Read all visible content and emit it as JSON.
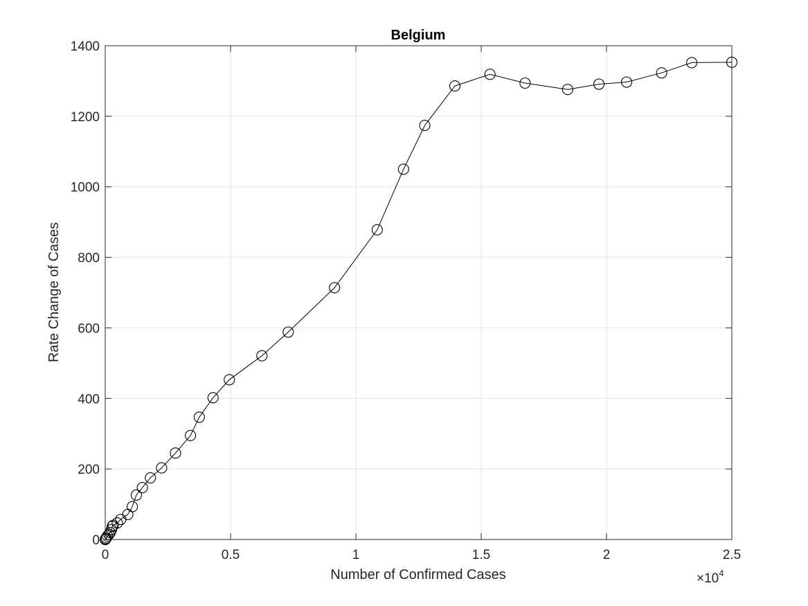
{
  "chart_data": {
    "type": "line",
    "title": "Belgium",
    "xlabel": "Number of Confirmed Cases",
    "ylabel": "Rate Change of Cases",
    "xlim": [
      0,
      25000
    ],
    "ylim": [
      0,
      1400
    ],
    "x_ticks": [
      0,
      5000,
      10000,
      15000,
      20000,
      25000
    ],
    "x_tick_labels": [
      "0",
      "0.5",
      "1",
      "1.5",
      "2",
      "2.5"
    ],
    "x_exponent_label": "×10",
    "x_exponent_power": "4",
    "y_ticks": [
      0,
      200,
      400,
      600,
      800,
      1000,
      1200,
      1400
    ],
    "y_tick_labels": [
      "0",
      "200",
      "400",
      "600",
      "800",
      "1000",
      "1200",
      "1400"
    ],
    "grid": true,
    "marker": "circle",
    "series": [
      {
        "name": "Belgium",
        "x": [
          0,
          20,
          50,
          90,
          150,
          200,
          250,
          280,
          320,
          480,
          620,
          900,
          1080,
          1240,
          1480,
          1800,
          2250,
          2800,
          3400,
          3750,
          4300,
          4950,
          6250,
          7300,
          9150,
          10850,
          11900,
          12750,
          13950,
          15350,
          16750,
          18450,
          19700,
          20800,
          22200,
          23400,
          25000
        ],
        "y": [
          0,
          2,
          5,
          10,
          15,
          20,
          28,
          37,
          40,
          47,
          57,
          71,
          93,
          126,
          147,
          175,
          203,
          245,
          295,
          347,
          402,
          453,
          521,
          588,
          714,
          878,
          1050,
          1174,
          1286,
          1319,
          1294,
          1276,
          1291,
          1297,
          1323,
          1352,
          1353
        ]
      }
    ]
  }
}
